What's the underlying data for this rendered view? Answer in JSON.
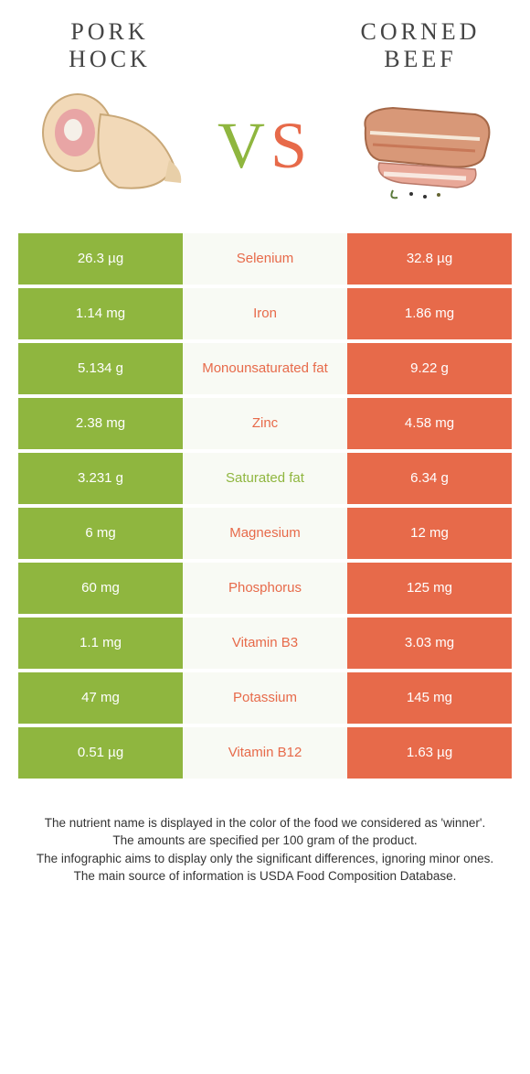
{
  "colors": {
    "left": "#8fb63f",
    "right": "#e76a4a",
    "mid_bg": "#f8faf4",
    "text_dark": "#444444"
  },
  "foods": {
    "left": {
      "title": "PORK HOCK"
    },
    "right": {
      "title": "CORNED BEEF"
    }
  },
  "vs": "VS",
  "nutrients": [
    {
      "name": "Selenium",
      "left": "26.3 µg",
      "right": "32.8 µg",
      "winner": "right"
    },
    {
      "name": "Iron",
      "left": "1.14 mg",
      "right": "1.86 mg",
      "winner": "right"
    },
    {
      "name": "Monounsaturated fat",
      "left": "5.134 g",
      "right": "9.22 g",
      "winner": "right"
    },
    {
      "name": "Zinc",
      "left": "2.38 mg",
      "right": "4.58 mg",
      "winner": "right"
    },
    {
      "name": "Saturated fat",
      "left": "3.231 g",
      "right": "6.34 g",
      "winner": "left"
    },
    {
      "name": "Magnesium",
      "left": "6 mg",
      "right": "12 mg",
      "winner": "right"
    },
    {
      "name": "Phosphorus",
      "left": "60 mg",
      "right": "125 mg",
      "winner": "right"
    },
    {
      "name": "Vitamin B3",
      "left": "1.1 mg",
      "right": "3.03 mg",
      "winner": "right"
    },
    {
      "name": "Potassium",
      "left": "47 mg",
      "right": "145 mg",
      "winner": "right"
    },
    {
      "name": "Vitamin B12",
      "left": "0.51 µg",
      "right": "1.63 µg",
      "winner": "right"
    }
  ],
  "footnotes": [
    "The nutrient name is displayed in the color of the food we considered as 'winner'.",
    "The amounts are specified per 100 gram of the product.",
    "The infographic aims to display only the significant differences, ignoring minor ones.",
    "The main source of information is USDA Food Composition Database."
  ]
}
